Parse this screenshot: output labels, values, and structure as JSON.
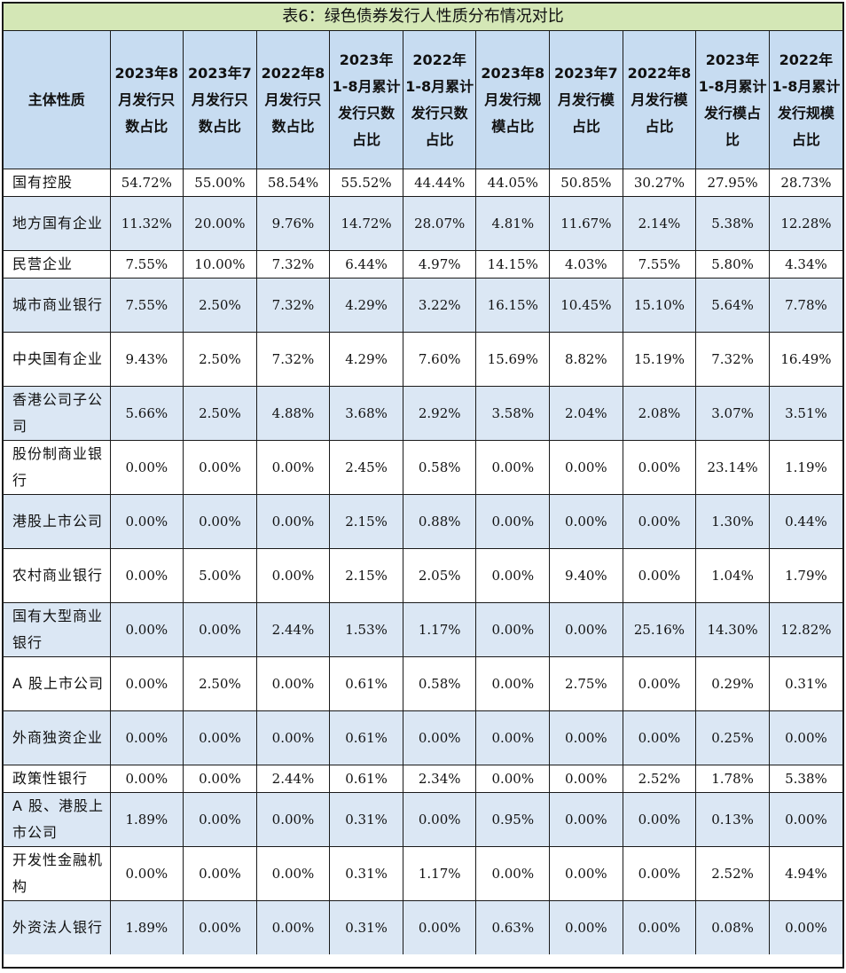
{
  "title": "表6：绿色债券发行人性质分布情况对比",
  "columns": [
    "主体性质",
    "2023年8月发行只数占比",
    "2023年7月发行只数占比",
    "2022年8月发行只数占比",
    "2023年1-8月累计发行只数占比",
    "2022年1-8月累计发行只数占比",
    "2023年8月发行规模占比",
    "2023年7月发行模占比",
    "2022年8月发行模占比",
    "2023年1-8月累计发行模占比",
    "2022年1-8月累计发行规模占比"
  ],
  "rows": [
    {
      "name": "国有控股",
      "values": [
        "54.72%",
        "55.00%",
        "58.54%",
        "55.52%",
        "44.44%",
        "44.05%",
        "50.85%",
        "30.27%",
        "27.95%",
        "28.73%"
      ]
    },
    {
      "name": "地方国有企业",
      "values": [
        "11.32%",
        "20.00%",
        "9.76%",
        "14.72%",
        "28.07%",
        "4.81%",
        "11.67%",
        "2.14%",
        "5.38%",
        "12.28%"
      ]
    },
    {
      "name": "民营企业",
      "values": [
        "7.55%",
        "10.00%",
        "7.32%",
        "6.44%",
        "4.97%",
        "14.15%",
        "4.03%",
        "7.55%",
        "5.80%",
        "4.34%"
      ]
    },
    {
      "name": "城市商业银行",
      "values": [
        "7.55%",
        "2.50%",
        "7.32%",
        "4.29%",
        "3.22%",
        "16.15%",
        "10.45%",
        "15.10%",
        "5.64%",
        "7.78%"
      ]
    },
    {
      "name": "中央国有企业",
      "values": [
        "9.43%",
        "2.50%",
        "7.32%",
        "4.29%",
        "7.60%",
        "15.69%",
        "8.82%",
        "15.19%",
        "7.32%",
        "16.49%"
      ]
    },
    {
      "name": "香港公司子公司",
      "values": [
        "5.66%",
        "2.50%",
        "4.88%",
        "3.68%",
        "2.92%",
        "3.58%",
        "2.04%",
        "2.08%",
        "3.07%",
        "3.51%"
      ]
    },
    {
      "name": "股份制商业银行",
      "values": [
        "0.00%",
        "0.00%",
        "0.00%",
        "2.45%",
        "0.58%",
        "0.00%",
        "0.00%",
        "0.00%",
        "23.14%",
        "1.19%"
      ]
    },
    {
      "name": "港股上市公司",
      "values": [
        "0.00%",
        "0.00%",
        "0.00%",
        "2.15%",
        "0.88%",
        "0.00%",
        "0.00%",
        "0.00%",
        "1.30%",
        "0.44%"
      ]
    },
    {
      "name": "农村商业银行",
      "values": [
        "0.00%",
        "5.00%",
        "0.00%",
        "2.15%",
        "2.05%",
        "0.00%",
        "9.40%",
        "0.00%",
        "1.04%",
        "1.79%"
      ]
    },
    {
      "name": "国有大型商业银行",
      "values": [
        "0.00%",
        "0.00%",
        "2.44%",
        "1.53%",
        "1.17%",
        "0.00%",
        "0.00%",
        "25.16%",
        "14.30%",
        "12.82%"
      ]
    },
    {
      "name": "A 股上市公司",
      "values": [
        "0.00%",
        "2.50%",
        "0.00%",
        "0.61%",
        "0.58%",
        "0.00%",
        "2.75%",
        "0.00%",
        "0.29%",
        "0.31%"
      ]
    },
    {
      "name": "外商独资企业",
      "values": [
        "0.00%",
        "0.00%",
        "0.00%",
        "0.61%",
        "0.00%",
        "0.00%",
        "0.00%",
        "0.00%",
        "0.25%",
        "0.00%"
      ]
    },
    {
      "name": "政策性银行",
      "values": [
        "0.00%",
        "0.00%",
        "2.44%",
        "0.61%",
        "2.34%",
        "0.00%",
        "0.00%",
        "2.52%",
        "1.78%",
        "5.38%"
      ]
    },
    {
      "name": "A 股、港股上市公司",
      "values": [
        "1.89%",
        "0.00%",
        "0.00%",
        "0.31%",
        "0.00%",
        "0.95%",
        "0.00%",
        "0.00%",
        "0.13%",
        "0.00%"
      ]
    },
    {
      "name": "开发性金融机构",
      "values": [
        "0.00%",
        "0.00%",
        "0.00%",
        "0.31%",
        "1.17%",
        "0.00%",
        "0.00%",
        "0.00%",
        "2.52%",
        "4.94%"
      ]
    },
    {
      "name": "外资法人银行",
      "values": [
        "1.89%",
        "0.00%",
        "0.00%",
        "0.31%",
        "0.00%",
        "0.63%",
        "0.00%",
        "0.00%",
        "0.08%",
        "0.00%"
      ]
    }
  ]
}
